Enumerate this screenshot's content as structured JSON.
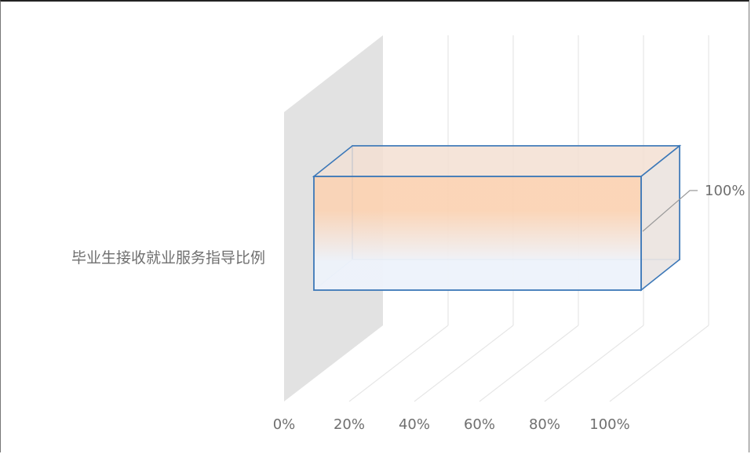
{
  "chart_data": {
    "type": "bar",
    "orientation": "horizontal",
    "style": "3d",
    "categories": [
      "毕业生接收就业服务指导比例"
    ],
    "series": [
      {
        "values": [
          100
        ]
      }
    ],
    "data_labels": [
      "100%"
    ],
    "x_ticks": [
      "0%",
      "20%",
      "40%",
      "60%",
      "80%",
      "100%"
    ],
    "xlim": [
      0,
      100
    ],
    "grid": true,
    "legend": "none"
  },
  "colors": {
    "bar_edge": "#3c78b8",
    "bar_fill_top": "#fbd3b4",
    "bar_fill_bottom": "#eef3fb",
    "wall": "#e2e2e2",
    "grid": "#e6e6e6",
    "text": "#6f6f6f"
  }
}
